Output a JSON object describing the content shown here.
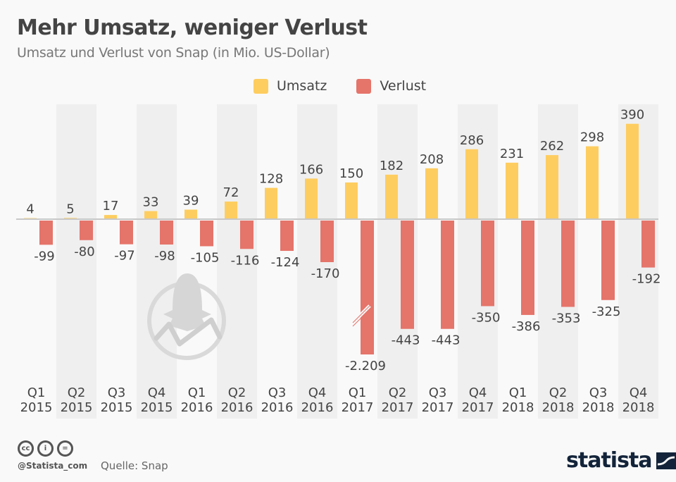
{
  "header": {
    "title": "Mehr Umsatz, weniger Verlust",
    "subtitle": "Umsatz und Verlust von Snap (in Mio. US-Dollar)"
  },
  "colors": {
    "umsatz": "#fecd60",
    "verlust": "#e5746a",
    "stripe": "#efefef",
    "background": "#f9f9f9",
    "text": "#444444",
    "brand": "#13243a"
  },
  "chart_data": {
    "type": "bar",
    "title": "Mehr Umsatz, weniger Verlust",
    "subtitle": "Umsatz und Verlust von Snap (in Mio. US-Dollar)",
    "xlabel": "",
    "ylabel": "",
    "legend": "top-center",
    "grid": false,
    "axis_break": {
      "category_index": 8,
      "series": "Verlust"
    },
    "categories": [
      [
        "Q1",
        "2015"
      ],
      [
        "Q2",
        "2015"
      ],
      [
        "Q3",
        "2015"
      ],
      [
        "Q4",
        "2015"
      ],
      [
        "Q1",
        "2016"
      ],
      [
        "Q2",
        "2016"
      ],
      [
        "Q3",
        "2016"
      ],
      [
        "Q4",
        "2016"
      ],
      [
        "Q1",
        "2017"
      ],
      [
        "Q2",
        "2017"
      ],
      [
        "Q3",
        "2017"
      ],
      [
        "Q4",
        "2017"
      ],
      [
        "Q1",
        "2018"
      ],
      [
        "Q2",
        "2018"
      ],
      [
        "Q3",
        "2018"
      ],
      [
        "Q4",
        "2018"
      ]
    ],
    "series": [
      {
        "name": "Umsatz",
        "values": [
          4,
          5,
          17,
          33,
          39,
          72,
          128,
          166,
          150,
          182,
          208,
          286,
          231,
          262,
          298,
          390
        ],
        "labels": [
          "4",
          "5",
          "17",
          "33",
          "39",
          "72",
          "128",
          "166",
          "150",
          "182",
          "208",
          "286",
          "231",
          "262",
          "298",
          "390"
        ]
      },
      {
        "name": "Verlust",
        "values": [
          -99,
          -80,
          -97,
          -98,
          -105,
          -116,
          -124,
          -170,
          -2209,
          -443,
          -443,
          -350,
          -386,
          -353,
          -325,
          -192
        ],
        "labels": [
          "-99",
          "-80",
          "-97",
          "-98",
          "-105",
          "-116",
          "-124",
          "-170",
          "-2.209",
          "-443",
          "-443",
          "-350",
          "-386",
          "-353",
          "-325",
          "-192"
        ]
      }
    ],
    "ylim": [
      -550,
      400
    ]
  },
  "footer": {
    "license_icons": [
      "cc-icon",
      "by-icon",
      "nd-icon"
    ],
    "license_labels": [
      "cc",
      "i",
      "="
    ],
    "handle": "@Statista_com",
    "source": "Quelle: Snap",
    "logo": "statista"
  }
}
